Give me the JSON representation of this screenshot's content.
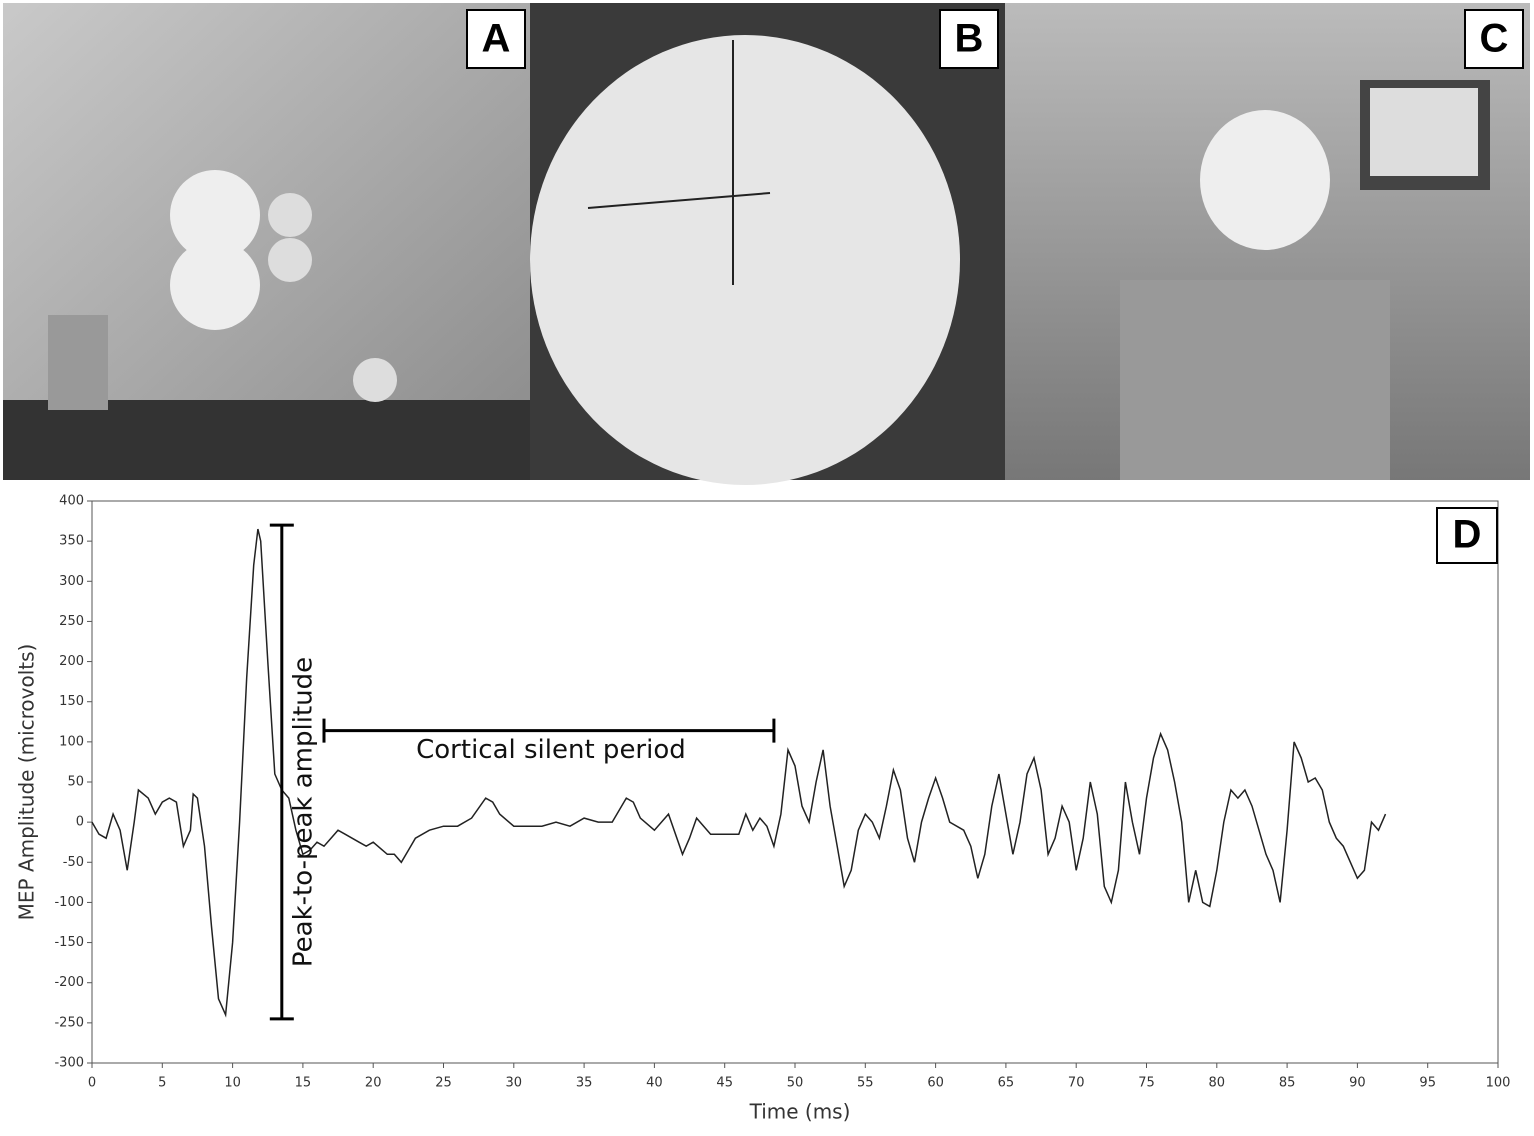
{
  "panels": [
    {
      "label": "A"
    },
    {
      "label": "B"
    },
    {
      "label": "C"
    }
  ],
  "chart_data": {
    "type": "line",
    "panel_label": "D",
    "x_label": "Time (ms)",
    "y_label": "MEP Amplitude (microvolts)",
    "xlim": [
      0,
      100
    ],
    "ylim": [
      -300,
      400
    ],
    "xticks": [
      0,
      5,
      10,
      15,
      20,
      25,
      30,
      35,
      40,
      45,
      50,
      55,
      60,
      65,
      70,
      75,
      80,
      85,
      90,
      95,
      100
    ],
    "yticks": [
      -300,
      -250,
      -200,
      -150,
      -100,
      -50,
      0,
      50,
      100,
      150,
      200,
      250,
      300,
      350,
      400
    ],
    "color": "#222222",
    "x": [
      0,
      0.5,
      1,
      1.5,
      2,
      2.5,
      3,
      3.3,
      4,
      4.5,
      5,
      5.5,
      6,
      6.5,
      7,
      7.2,
      7.5,
      8,
      8.5,
      9,
      9.5,
      10,
      10.5,
      11,
      11.5,
      11.8,
      12,
      12.5,
      13,
      13.5,
      14,
      14.5,
      15,
      15.5,
      16,
      16.5,
      17,
      17.5,
      18,
      18.5,
      19,
      19.5,
      20,
      21,
      21.5,
      22,
      22.5,
      23,
      24,
      25,
      26,
      27,
      28,
      28.5,
      29,
      30,
      31,
      32,
      33,
      34,
      35,
      36,
      37,
      38,
      38.5,
      39,
      40,
      41,
      42,
      42.5,
      43,
      44,
      45,
      46,
      46.5,
      47,
      47.5,
      48,
      48.5,
      49,
      49.5,
      50,
      50.5,
      51,
      51.5,
      52,
      52.5,
      53,
      53.5,
      54,
      54.5,
      55,
      55.5,
      56,
      56.5,
      57,
      57.5,
      58,
      58.5,
      59,
      59.5,
      60,
      60.5,
      61,
      62,
      62.5,
      63,
      63.5,
      64,
      64.5,
      65,
      65.5,
      66,
      66.5,
      67,
      67.5,
      68,
      68.5,
      69,
      69.5,
      70,
      70.5,
      71,
      71.5,
      72,
      72.5,
      73,
      73.5,
      74,
      74.5,
      75,
      75.5,
      76,
      76.5,
      77,
      77.5,
      78,
      78.5,
      79,
      79.5,
      80,
      80.5,
      81,
      81.5,
      82,
      82.5,
      83,
      83.5,
      84,
      84.5,
      85,
      85.5,
      86,
      86.5,
      87,
      87.5,
      88,
      88.5,
      89,
      89.5,
      90,
      90.5,
      91,
      91.5,
      92
    ],
    "values": [
      0,
      -15,
      -20,
      10,
      -10,
      -60,
      0,
      40,
      30,
      10,
      25,
      30,
      25,
      -30,
      -10,
      35,
      30,
      -30,
      -130,
      -220,
      -240,
      -150,
      0,
      180,
      320,
      365,
      350,
      200,
      60,
      40,
      30,
      -10,
      -40,
      -35,
      -25,
      -30,
      -20,
      -10,
      -15,
      -20,
      -25,
      -30,
      -25,
      -40,
      -40,
      -50,
      -35,
      -20,
      -10,
      -5,
      -5,
      5,
      30,
      25,
      10,
      -5,
      -5,
      -5,
      0,
      -5,
      5,
      0,
      0,
      30,
      25,
      5,
      -10,
      10,
      -40,
      -20,
      5,
      -15,
      -15,
      -15,
      10,
      -10,
      5,
      -5,
      -30,
      10,
      90,
      70,
      20,
      0,
      50,
      90,
      20,
      -30,
      -80,
      -60,
      -10,
      10,
      0,
      -20,
      20,
      65,
      40,
      -20,
      -50,
      0,
      30,
      55,
      30,
      0,
      -10,
      -30,
      -70,
      -40,
      20,
      60,
      10,
      -40,
      0,
      60,
      80,
      40,
      -40,
      -20,
      20,
      0,
      -60,
      -20,
      50,
      10,
      -80,
      -100,
      -60,
      50,
      0,
      -40,
      30,
      80,
      110,
      90,
      50,
      0,
      -100,
      -60,
      -100,
      -105,
      -60,
      0,
      40,
      30,
      40,
      20,
      -10,
      -40,
      -60,
      -100,
      -10,
      100,
      80,
      50,
      55,
      40,
      0,
      -20,
      -30,
      -50,
      -70,
      -60,
      0,
      -10,
      10
    ],
    "annotations": [
      {
        "text": "Peak-to-peak amplitude",
        "x": 13.5,
        "span": [
          -245,
          370
        ]
      },
      {
        "text": "Cortical silent period",
        "y": 114,
        "span": [
          16.5,
          48.5
        ]
      }
    ]
  }
}
